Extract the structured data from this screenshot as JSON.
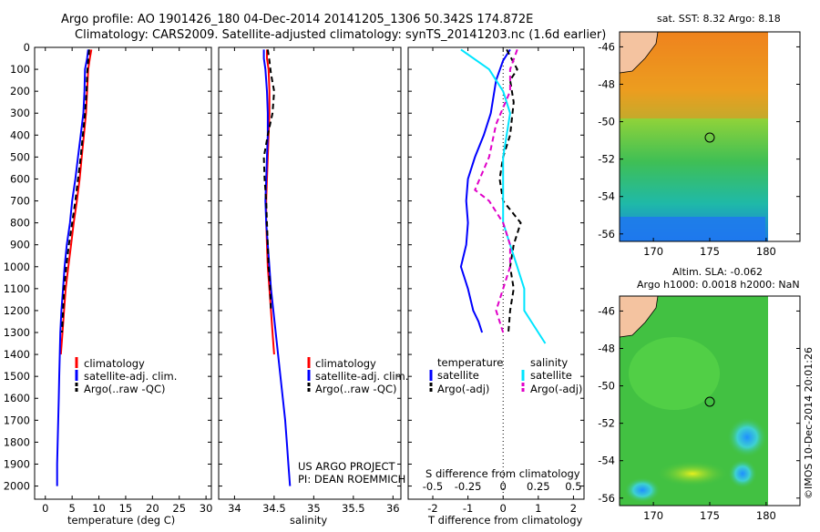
{
  "header": {
    "title_line1": "Argo profile: AO 1901426_180 04-Dec-2014 20141205_1306 50.342S 174.872E",
    "title_line2": "Climatology: CARS2009. Satellite-adjusted climatology: synTS_20141203.nc (1.6d earlier)"
  },
  "colors": {
    "climatology": "#ff0000",
    "satellite": "#0000ff",
    "argo": "#000000",
    "salinity_satellite": "#00e5ff",
    "salinity_argo": "#e000c8"
  },
  "depth_axis": {
    "ticks": [
      "0",
      "100",
      "200",
      "300",
      "400",
      "500",
      "600",
      "700",
      "800",
      "900",
      "1000",
      "1100",
      "1200",
      "1300",
      "1400",
      "1500",
      "1600",
      "1700",
      "1800",
      "1900",
      "2000"
    ]
  },
  "chart_data": [
    {
      "type": "line",
      "name": "temperature-profile",
      "xlabel": "temperature (deg C)",
      "xlim": [
        -2,
        31
      ],
      "ylim": [
        2060,
        0
      ],
      "xticks": [
        "0",
        "5",
        "10",
        "15",
        "20",
        "25",
        "30"
      ],
      "legend": [
        "climatology",
        "satellite-adj. clim.",
        "Argo(..raw -QC)"
      ],
      "series": [
        {
          "name": "climatology",
          "color_key": "climatology",
          "dash": false,
          "x": [
            8.6,
            8.3,
            8.0,
            7.8,
            7.6,
            7.2,
            6.8,
            6.4,
            5.9,
            5.3,
            4.8,
            4.3,
            3.8,
            3.5,
            3.2,
            2.9
          ],
          "y": [
            10,
            50,
            100,
            200,
            300,
            400,
            500,
            600,
            700,
            800,
            900,
            1000,
            1100,
            1200,
            1300,
            1400
          ]
        },
        {
          "name": "satellite-adj. clim.",
          "color_key": "satellite",
          "dash": false,
          "x": [
            8.0,
            7.8,
            7.4,
            7.3,
            7.1,
            6.6,
            6.1,
            5.6,
            5.0,
            4.6,
            4.0,
            3.6,
            3.3,
            3.0,
            2.8,
            2.7,
            2.6,
            2.5,
            2.4,
            2.3,
            2.2,
            2.2
          ],
          "y": [
            10,
            50,
            100,
            200,
            300,
            400,
            500,
            600,
            700,
            800,
            900,
            1000,
            1100,
            1200,
            1300,
            1400,
            1500,
            1600,
            1700,
            1800,
            1900,
            2000
          ]
        },
        {
          "name": "Argo(..raw -QC)",
          "color_key": "argo",
          "dash": true,
          "x": [
            8.2,
            8.0,
            7.8,
            7.7,
            7.4,
            7.0,
            6.6,
            6.1,
            5.6,
            5.0,
            4.4,
            3.9,
            3.5,
            3.3,
            3.1
          ],
          "y": [
            10,
            60,
            120,
            200,
            300,
            400,
            500,
            600,
            700,
            800,
            900,
            1000,
            1100,
            1200,
            1300
          ]
        }
      ]
    },
    {
      "type": "line",
      "name": "salinity-profile",
      "xlabel": "salinity",
      "xlim": [
        33.8,
        36.1
      ],
      "ylim": [
        2060,
        0
      ],
      "xticks": [
        "34",
        "34.5",
        "35",
        "35.5",
        "36"
      ],
      "legend": [
        "climatology",
        "satellite-adj. clim.",
        "Argo(..raw -QC)"
      ],
      "annotation": [
        "US ARGO PROJECT",
        "PI: DEAN ROEMMICH"
      ],
      "series": [
        {
          "name": "climatology",
          "color_key": "climatology",
          "dash": false,
          "x": [
            34.41,
            34.41,
            34.43,
            34.44,
            34.44,
            34.43,
            34.42,
            34.41,
            34.4,
            34.4,
            34.41,
            34.42,
            34.44,
            34.46,
            34.48,
            34.5
          ],
          "y": [
            10,
            50,
            100,
            200,
            300,
            400,
            500,
            600,
            700,
            800,
            900,
            1000,
            1100,
            1200,
            1300,
            1400
          ]
        },
        {
          "name": "satellite-adj. clim.",
          "color_key": "satellite",
          "dash": false,
          "x": [
            34.37,
            34.37,
            34.39,
            34.41,
            34.42,
            34.42,
            34.41,
            34.4,
            34.39,
            34.4,
            34.42,
            34.44,
            34.46,
            34.49,
            34.52,
            34.55,
            34.58,
            34.61,
            34.64,
            34.66,
            34.68,
            34.7
          ],
          "y": [
            10,
            50,
            100,
            200,
            300,
            400,
            500,
            600,
            700,
            800,
            900,
            1000,
            1100,
            1200,
            1300,
            1400,
            1500,
            1600,
            1700,
            1800,
            1900,
            2000
          ]
        },
        {
          "name": "Argo(..raw -QC)",
          "color_key": "argo",
          "dash": true,
          "x": [
            34.42,
            34.44,
            34.46,
            34.5,
            34.48,
            34.42,
            34.37,
            34.38,
            34.4,
            34.41,
            34.42,
            34.43,
            34.45,
            34.46
          ],
          "y": [
            10,
            60,
            120,
            200,
            300,
            400,
            500,
            600,
            700,
            800,
            900,
            1000,
            1100,
            1200
          ]
        }
      ]
    },
    {
      "type": "line",
      "name": "difference-profile",
      "xlabel": "T difference from climatology",
      "xlabel_top": "S difference from climatology",
      "xlim": [
        -2.7,
        2.3
      ],
      "ylim": [
        2060,
        0
      ],
      "xticks": [
        "-2",
        "-1",
        "0",
        "1",
        "2"
      ],
      "sticks": [
        "-0.5",
        "-0.25",
        "0",
        "0.25",
        "0.5"
      ],
      "legend_headers": [
        "temperature",
        "salinity"
      ],
      "legend": [
        "satellite",
        "Argo(-adj)",
        "satellite",
        "Argo(-adj)"
      ],
      "series": [
        {
          "name": "satellite",
          "color_key": "satellite",
          "dash": false,
          "x": [
            0.2,
            0.0,
            -0.2,
            -0.35,
            -0.55,
            -0.8,
            -1.0,
            -1.05,
            -1.0,
            -1.05,
            -1.2,
            -1.0,
            -0.85,
            -0.7,
            -0.6
          ],
          "y": [
            10,
            60,
            150,
            300,
            400,
            500,
            600,
            700,
            800,
            900,
            1000,
            1100,
            1200,
            1250,
            1300
          ]
        },
        {
          "name": "Argo(-adj)",
          "color_key": "argo",
          "dash": true,
          "x": [
            0.1,
            0.4,
            0.2,
            0.3,
            0.2,
            0.0,
            -0.1,
            0.0,
            0.5,
            0.3,
            0.2,
            0.3,
            0.2,
            0.15
          ],
          "y": [
            10,
            100,
            150,
            250,
            400,
            500,
            600,
            700,
            800,
            900,
            1000,
            1100,
            1200,
            1300
          ]
        },
        {
          "name": "salinity satellite",
          "color_key": "salinity_satellite",
          "dash": false,
          "x": [
            -0.3,
            -0.1,
            0.0,
            0.05,
            0.0,
            0.0,
            0.0,
            0.05,
            0.1,
            0.15,
            0.15,
            0.2,
            0.25,
            0.3
          ],
          "y": [
            10,
            100,
            200,
            300,
            500,
            700,
            800,
            900,
            1000,
            1100,
            1200,
            1250,
            1300,
            1350
          ]
        },
        {
          "name": "salinity Argo(-adj)",
          "color_key": "salinity_argo",
          "dash": true,
          "x": [
            0.1,
            0.05,
            0.05,
            -0.05,
            -0.1,
            -0.2,
            -0.1,
            0.0,
            0.05,
            0.05,
            0.0,
            -0.05,
            0.0
          ],
          "y": [
            10,
            100,
            200,
            350,
            500,
            650,
            700,
            800,
            900,
            1000,
            1100,
            1200,
            1300
          ]
        }
      ]
    }
  ],
  "maps": {
    "sst": {
      "title": "sat. SST: 8.32 Argo: 8.18",
      "lat_ticks": [
        "-46",
        "-48",
        "-50",
        "-52",
        "-54",
        "-56"
      ],
      "lon_ticks": [
        "170",
        "175",
        "180"
      ]
    },
    "sla": {
      "title_line1": "Altim. SLA: -0.062",
      "title_line2": "Argo h1000: 0.0018 h2000: NaN",
      "lat_ticks": [
        "-46",
        "-48",
        "-50",
        "-52",
        "-54",
        "-56"
      ],
      "lon_ticks": [
        "170",
        "175",
        "180"
      ],
      "credit": "©IMOS 10-Dec-2014 20:01:26"
    }
  }
}
